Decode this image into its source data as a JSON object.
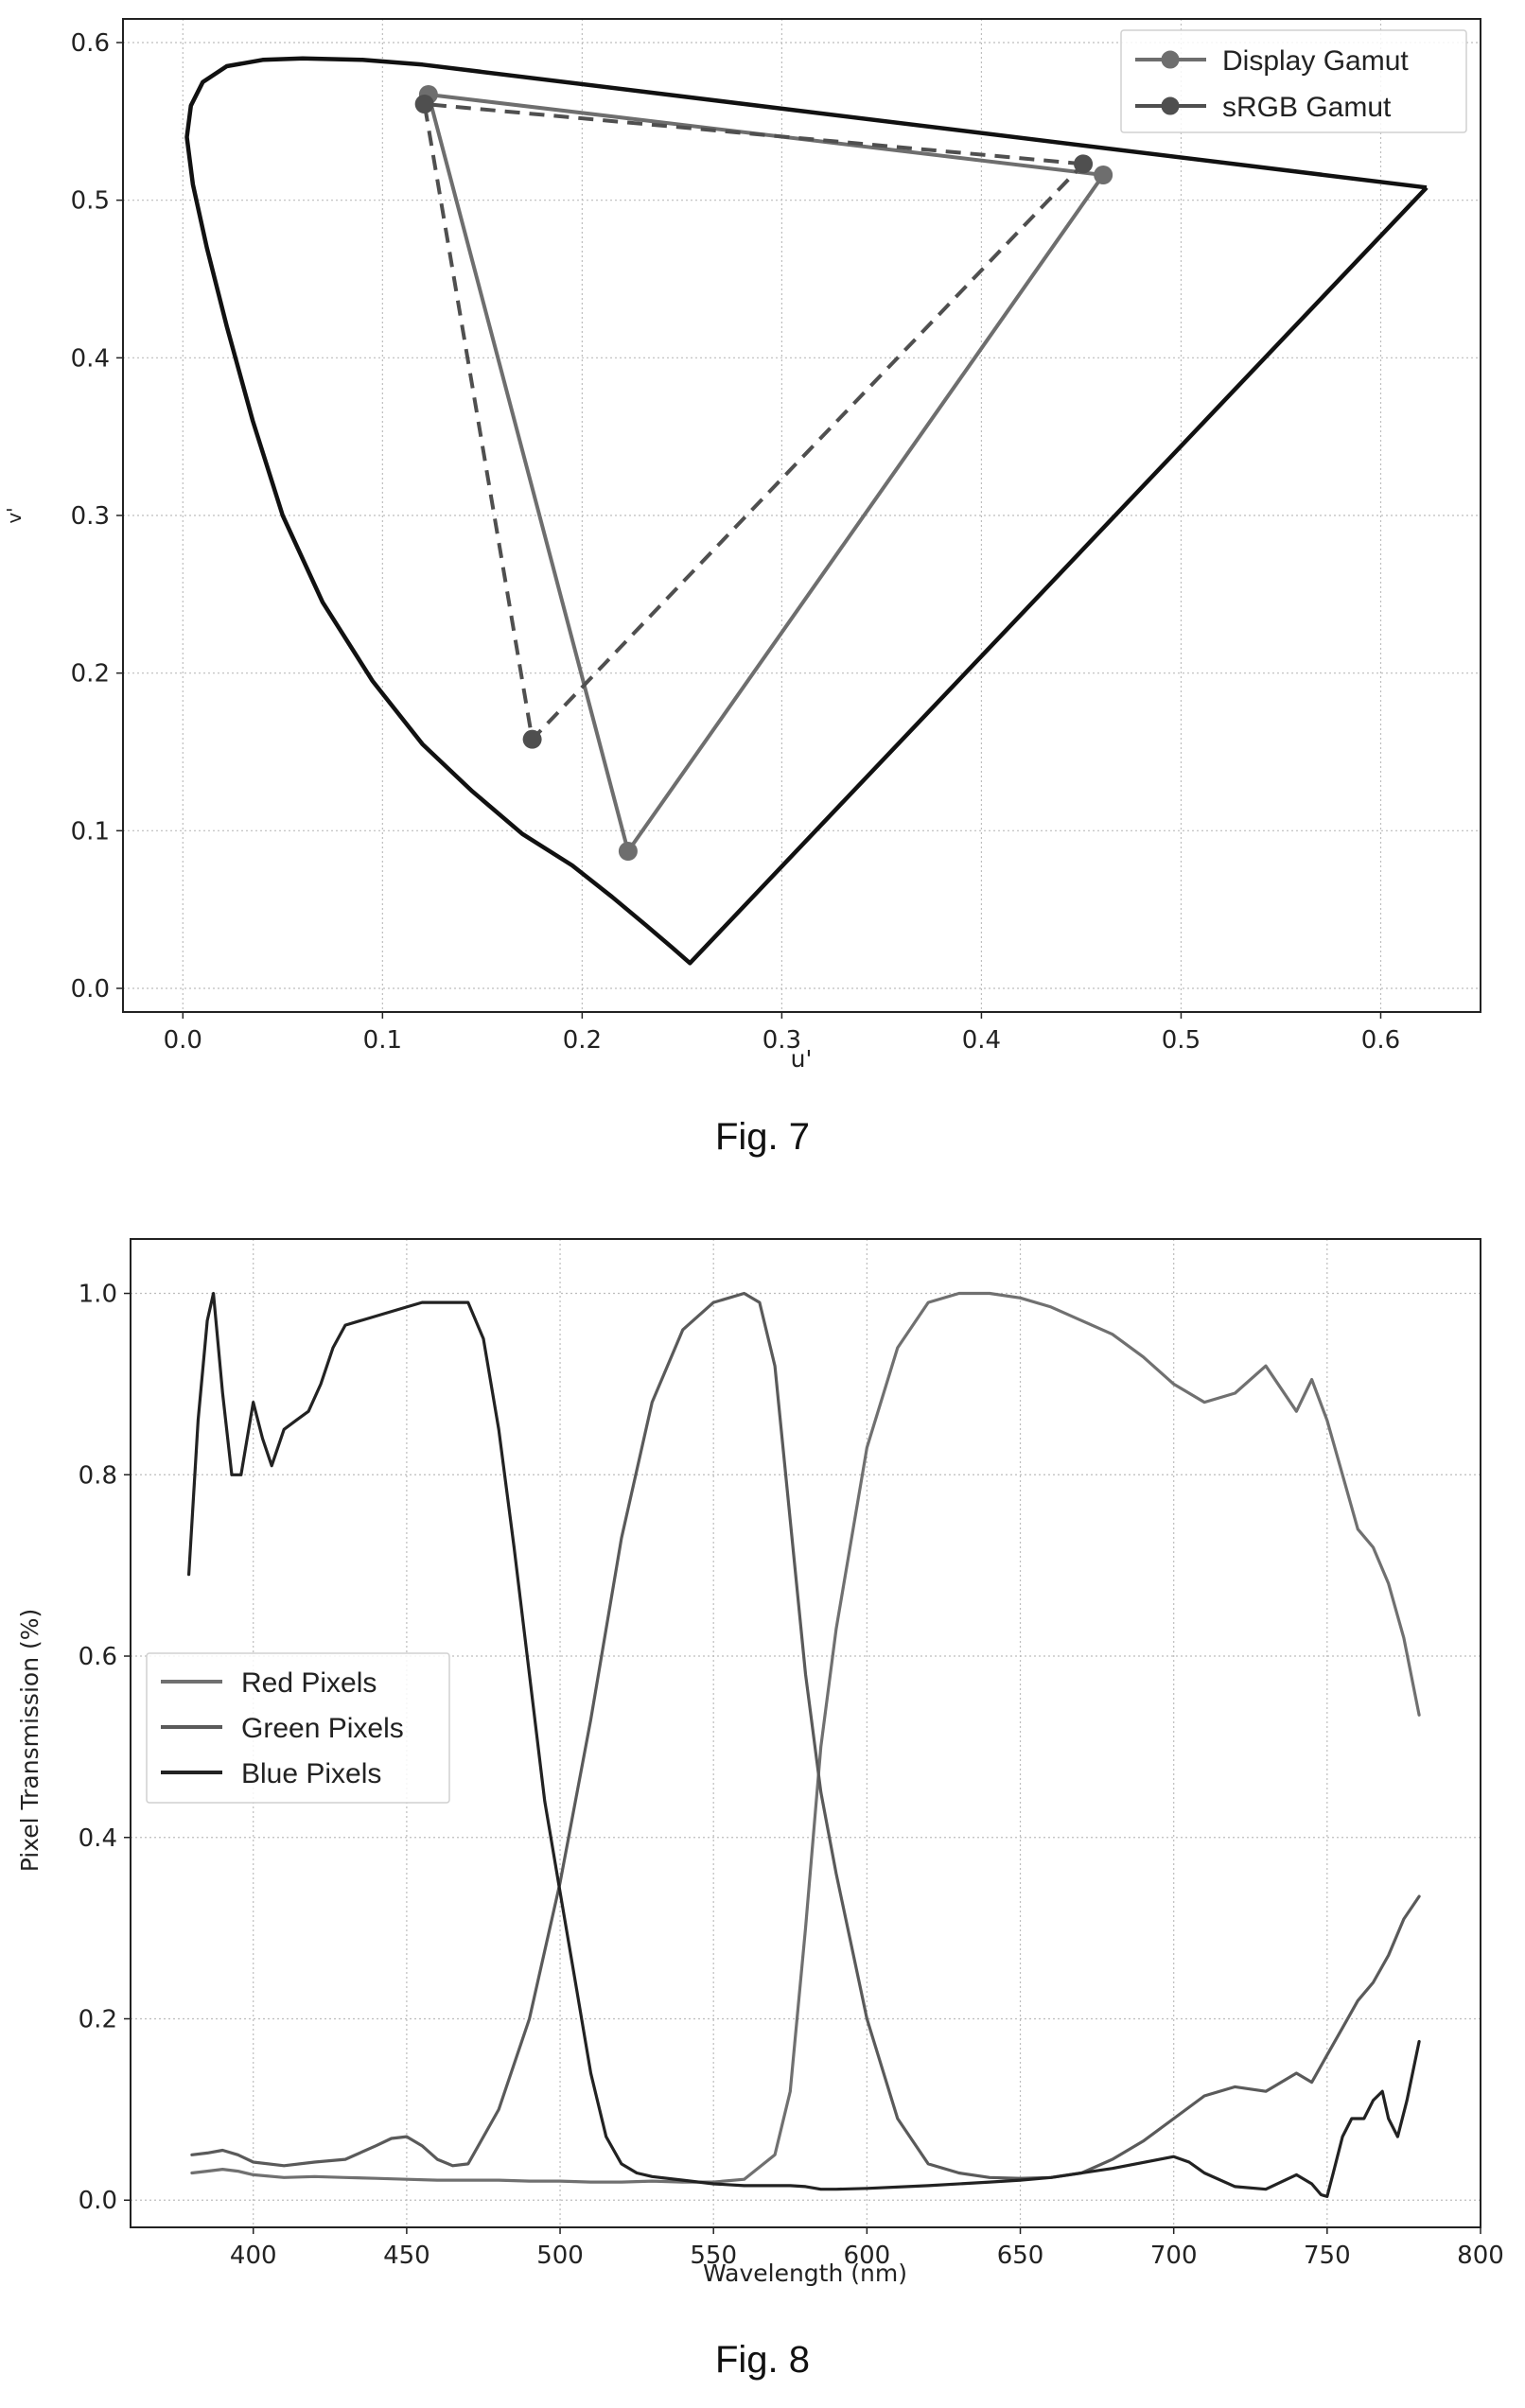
{
  "chart_data": [
    {
      "type": "line",
      "figure_caption": "Fig. 7",
      "title": "",
      "xlabel": "u'",
      "ylabel": "v'",
      "xlim": [
        -0.03,
        0.65
      ],
      "ylim": [
        -0.015,
        0.615
      ],
      "x_ticks": [
        0.0,
        0.1,
        0.2,
        0.3,
        0.4,
        0.5,
        0.6
      ],
      "x_tick_labels": [
        "0.0",
        "0.1",
        "0.2",
        "0.3",
        "0.4",
        "0.5",
        "0.6"
      ],
      "y_ticks": [
        0.0,
        0.1,
        0.2,
        0.3,
        0.4,
        0.5,
        0.6
      ],
      "y_tick_labels": [
        "0.0",
        "0.1",
        "0.2",
        "0.3",
        "0.4",
        "0.5",
        "0.6"
      ],
      "grid": true,
      "legend_position": "top-right",
      "spectral_locus": {
        "color": "#111111",
        "points": [
          [
            0.623,
            0.508
          ],
          [
            0.254,
            0.016
          ],
          [
            0.245,
            0.026
          ],
          [
            0.232,
            0.04
          ],
          [
            0.215,
            0.058
          ],
          [
            0.195,
            0.078
          ],
          [
            0.17,
            0.098
          ],
          [
            0.145,
            0.125
          ],
          [
            0.12,
            0.155
          ],
          [
            0.095,
            0.195
          ],
          [
            0.07,
            0.245
          ],
          [
            0.05,
            0.3
          ],
          [
            0.035,
            0.36
          ],
          [
            0.022,
            0.42
          ],
          [
            0.012,
            0.47
          ],
          [
            0.005,
            0.51
          ],
          [
            0.002,
            0.54
          ],
          [
            0.004,
            0.56
          ],
          [
            0.01,
            0.575
          ],
          [
            0.022,
            0.585
          ],
          [
            0.04,
            0.589
          ],
          [
            0.06,
            0.59
          ],
          [
            0.09,
            0.589
          ],
          [
            0.12,
            0.586
          ],
          [
            0.623,
            0.508
          ]
        ]
      },
      "series": [
        {
          "name": "Display Gamut",
          "style": "solid",
          "color": "#6e6e6e",
          "x": [
            0.461,
            0.123,
            0.223,
            0.461
          ],
          "y": [
            0.516,
            0.567,
            0.087,
            0.516
          ]
        },
        {
          "name": "sRGB Gamut",
          "style": "dashed",
          "color": "#4f4f4f",
          "x": [
            0.451,
            0.121,
            0.175,
            0.451
          ],
          "y": [
            0.523,
            0.561,
            0.158,
            0.523
          ]
        }
      ]
    },
    {
      "type": "line",
      "figure_caption": "Fig. 8",
      "title": "",
      "xlabel": "Wavelength (nm)",
      "ylabel": "Pixel Transmission (%)",
      "xlim": [
        360,
        800
      ],
      "ylim": [
        -0.03,
        1.06
      ],
      "x_ticks": [
        400,
        450,
        500,
        550,
        600,
        650,
        700,
        750,
        800
      ],
      "x_tick_labels": [
        "400",
        "450",
        "500",
        "550",
        "600",
        "650",
        "700",
        "750",
        "800"
      ],
      "y_ticks": [
        0.0,
        0.2,
        0.4,
        0.6,
        0.8,
        1.0
      ],
      "y_tick_labels": [
        "0.0",
        "0.2",
        "0.4",
        "0.6",
        "0.8",
        "1.0"
      ],
      "grid": true,
      "legend_position": "center-left",
      "series": [
        {
          "name": "Red Pixels",
          "color": "#707070",
          "x": [
            380,
            385,
            390,
            395,
            400,
            410,
            420,
            430,
            440,
            450,
            460,
            470,
            480,
            490,
            500,
            510,
            520,
            530,
            540,
            550,
            560,
            570,
            575,
            580,
            585,
            590,
            600,
            610,
            620,
            630,
            640,
            650,
            660,
            670,
            680,
            690,
            700,
            710,
            720,
            730,
            740,
            745,
            750,
            755,
            760,
            765,
            770,
            775,
            780
          ],
          "y": [
            0.03,
            0.032,
            0.034,
            0.032,
            0.028,
            0.025,
            0.026,
            0.025,
            0.024,
            0.023,
            0.022,
            0.022,
            0.022,
            0.021,
            0.021,
            0.02,
            0.02,
            0.021,
            0.02,
            0.02,
            0.023,
            0.05,
            0.12,
            0.3,
            0.5,
            0.63,
            0.83,
            0.94,
            0.99,
            1.0,
            1.0,
            0.995,
            0.985,
            0.97,
            0.955,
            0.93,
            0.9,
            0.88,
            0.89,
            0.92,
            0.87,
            0.905,
            0.86,
            0.8,
            0.74,
            0.72,
            0.68,
            0.62,
            0.535
          ]
        },
        {
          "name": "Green Pixels",
          "color": "#5a5a5a",
          "x": [
            380,
            385,
            390,
            395,
            400,
            410,
            420,
            430,
            440,
            445,
            450,
            455,
            460,
            465,
            470,
            480,
            490,
            500,
            510,
            520,
            530,
            540,
            550,
            560,
            565,
            570,
            575,
            580,
            585,
            590,
            600,
            610,
            620,
            630,
            640,
            650,
            660,
            670,
            680,
            690,
            700,
            710,
            720,
            730,
            740,
            745,
            750,
            755,
            760,
            765,
            770,
            775,
            780
          ],
          "y": [
            0.05,
            0.052,
            0.055,
            0.05,
            0.042,
            0.038,
            0.042,
            0.045,
            0.06,
            0.068,
            0.07,
            0.06,
            0.045,
            0.038,
            0.04,
            0.1,
            0.2,
            0.35,
            0.53,
            0.73,
            0.88,
            0.96,
            0.99,
            1.0,
            0.99,
            0.92,
            0.75,
            0.58,
            0.45,
            0.36,
            0.2,
            0.09,
            0.04,
            0.03,
            0.025,
            0.024,
            0.025,
            0.03,
            0.045,
            0.065,
            0.09,
            0.115,
            0.125,
            0.12,
            0.14,
            0.13,
            0.16,
            0.19,
            0.22,
            0.24,
            0.27,
            0.31,
            0.335
          ]
        },
        {
          "name": "Blue Pixels",
          "color": "#222222",
          "x": [
            379,
            382,
            385,
            387,
            390,
            393,
            396,
            400,
            403,
            406,
            410,
            414,
            418,
            422,
            426,
            430,
            440,
            450,
            455,
            460,
            470,
            475,
            480,
            485,
            490,
            495,
            500,
            505,
            510,
            515,
            520,
            525,
            530,
            540,
            550,
            560,
            570,
            575,
            580,
            585,
            590,
            600,
            620,
            640,
            650,
            660,
            680,
            700,
            705,
            710,
            720,
            730,
            740,
            745,
            748,
            750,
            752,
            755,
            758,
            762,
            765,
            768,
            770,
            773,
            776,
            780
          ],
          "y": [
            0.69,
            0.86,
            0.97,
            1.0,
            0.89,
            0.8,
            0.8,
            0.88,
            0.84,
            0.81,
            0.85,
            0.86,
            0.87,
            0.9,
            0.94,
            0.965,
            0.975,
            0.985,
            0.99,
            0.99,
            0.99,
            0.95,
            0.85,
            0.72,
            0.58,
            0.44,
            0.34,
            0.24,
            0.14,
            0.07,
            0.04,
            0.03,
            0.026,
            0.022,
            0.018,
            0.016,
            0.016,
            0.016,
            0.015,
            0.012,
            0.012,
            0.013,
            0.016,
            0.02,
            0.022,
            0.025,
            0.035,
            0.048,
            0.042,
            0.03,
            0.015,
            0.012,
            0.028,
            0.018,
            0.006,
            0.004,
            0.03,
            0.07,
            0.09,
            0.09,
            0.11,
            0.12,
            0.09,
            0.07,
            0.11,
            0.175
          ]
        }
      ]
    }
  ]
}
